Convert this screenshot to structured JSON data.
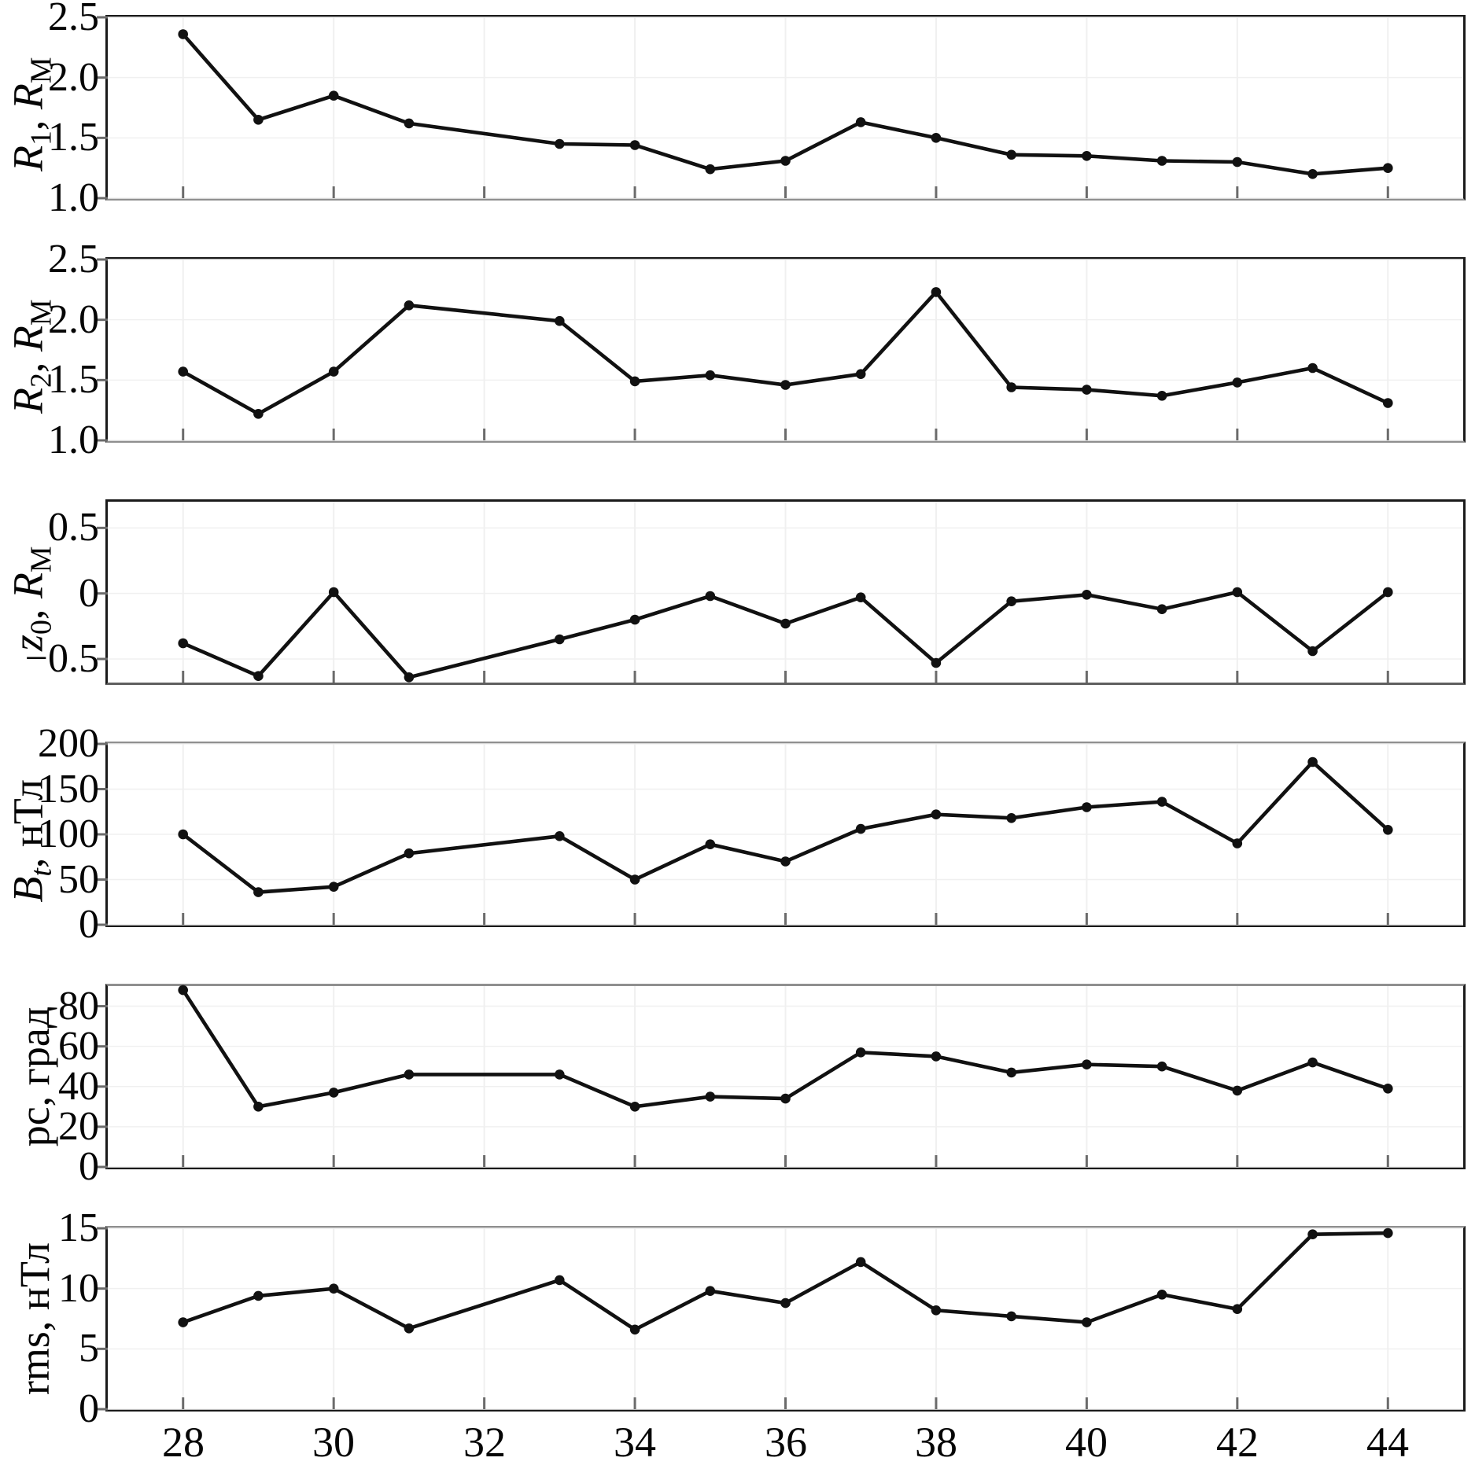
{
  "chart_data": {
    "type": "line",
    "x": [
      28,
      29,
      30,
      31,
      33,
      34,
      35,
      36,
      37,
      38,
      39,
      40,
      41,
      42,
      43,
      44
    ],
    "xlim": [
      27,
      45
    ],
    "x_ticks": [
      28,
      30,
      32,
      34,
      36,
      38,
      40,
      42,
      44
    ],
    "x_tick_labels": [
      "28",
      "30",
      "32",
      "34",
      "36",
      "38",
      "40",
      "42",
      "44"
    ],
    "legend": "none",
    "grid": "off",
    "marker": "filled-circle",
    "panels": [
      {
        "id": "R1",
        "ylabel": "R1, RM",
        "ylabel_parts": [
          {
            "t": "R",
            "i": 1
          },
          {
            "t": "1",
            "s": 1
          },
          {
            "t": ", "
          },
          {
            "t": "R",
            "i": 1
          },
          {
            "t": "M",
            "s": 1
          }
        ],
        "ylim": [
          1.0,
          2.5
        ],
        "yticks": [
          {
            "v": 2.5,
            "label": "2.5"
          },
          {
            "v": 2.0,
            "label": "2.0"
          },
          {
            "v": 1.5,
            "label": "1.5"
          },
          {
            "v": 1.0,
            "label": "1.0"
          }
        ],
        "values": [
          2.36,
          1.65,
          1.85,
          1.62,
          1.45,
          1.44,
          1.24,
          1.31,
          1.63,
          1.5,
          1.36,
          1.35,
          1.31,
          1.3,
          1.2,
          1.25
        ],
        "frame": {
          "top": "dark",
          "bottom": "muted"
        }
      },
      {
        "id": "R2",
        "ylabel": "R2, RM",
        "ylabel_parts": [
          {
            "t": "R",
            "i": 1
          },
          {
            "t": "2",
            "s": 1
          },
          {
            "t": ", "
          },
          {
            "t": "R",
            "i": 1
          },
          {
            "t": "M",
            "s": 1
          }
        ],
        "ylim": [
          1.0,
          2.5
        ],
        "yticks": [
          {
            "v": 2.5,
            "label": "2.5"
          },
          {
            "v": 2.0,
            "label": "2.0"
          },
          {
            "v": 1.5,
            "label": "1.5"
          },
          {
            "v": 1.0,
            "label": "1.0"
          }
        ],
        "values": [
          1.57,
          1.22,
          1.57,
          2.12,
          1.99,
          1.49,
          1.54,
          1.46,
          1.55,
          2.23,
          1.44,
          1.42,
          1.37,
          1.48,
          1.6,
          1.31
        ],
        "frame": {
          "top": "dark",
          "bottom": "muted"
        }
      },
      {
        "id": "z0",
        "ylabel": "z0, RM",
        "ylabel_parts": [
          {
            "t": "z",
            "i": 1
          },
          {
            "t": "0",
            "s": 1
          },
          {
            "t": ", "
          },
          {
            "t": "R",
            "i": 1
          },
          {
            "t": "M",
            "s": 1
          }
        ],
        "ylim": [
          -0.68,
          0.7
        ],
        "yticks": [
          {
            "v": 0.5,
            "label": "0.5"
          },
          {
            "v": 0,
            "label": "0"
          },
          {
            "v": -0.5,
            "label": "−0.5"
          }
        ],
        "values": [
          -0.38,
          -0.63,
          0.01,
          -0.64,
          -0.35,
          -0.2,
          -0.02,
          -0.23,
          -0.03,
          -0.53,
          -0.06,
          -0.01,
          -0.12,
          0.01,
          -0.44,
          0.01
        ],
        "frame": {
          "top": "dark",
          "bottom": "mid"
        }
      },
      {
        "id": "Bt",
        "ylabel": "Bt, нТл",
        "ylabel_parts": [
          {
            "t": "B",
            "i": 1
          },
          {
            "t": "t",
            "si": 1
          },
          {
            "t": ", нТл"
          }
        ],
        "ylim": [
          0,
          200
        ],
        "yticks": [
          {
            "v": 200,
            "label": "200"
          },
          {
            "v": 150,
            "label": "150"
          },
          {
            "v": 100,
            "label": "100"
          },
          {
            "v": 50,
            "label": "50"
          },
          {
            "v": 0,
            "label": "0"
          }
        ],
        "values": [
          100,
          36,
          42,
          79,
          98,
          50,
          89,
          70,
          106,
          122,
          118,
          130,
          136,
          90,
          180,
          105
        ],
        "frame": {
          "top": "muted",
          "bottom": "dark"
        }
      },
      {
        "id": "pc",
        "ylabel": "pc, град",
        "ylabel_parts": [
          {
            "t": "pc, град"
          }
        ],
        "ylim": [
          0,
          90
        ],
        "yticks": [
          {
            "v": 80,
            "label": "80"
          },
          {
            "v": 60,
            "label": "60"
          },
          {
            "v": 40,
            "label": "40"
          },
          {
            "v": 20,
            "label": "20"
          },
          {
            "v": 0,
            "label": "0"
          }
        ],
        "values": [
          88,
          30,
          37,
          46,
          46,
          30,
          35,
          34,
          57,
          55,
          47,
          51,
          50,
          38,
          52,
          39
        ],
        "frame": {
          "top": "muted",
          "bottom": "dark"
        }
      },
      {
        "id": "rms",
        "ylabel": "rms, нТл",
        "ylabel_parts": [
          {
            "t": "rms, нТл"
          }
        ],
        "ylim": [
          0,
          15
        ],
        "yticks": [
          {
            "v": 15,
            "label": "15"
          },
          {
            "v": 10,
            "label": "10"
          },
          {
            "v": 5,
            "label": "5"
          },
          {
            "v": 0,
            "label": "0"
          }
        ],
        "values": [
          7.2,
          9.4,
          10.0,
          6.7,
          10.7,
          6.6,
          9.8,
          8.8,
          12.2,
          8.2,
          7.7,
          7.2,
          9.5,
          8.3,
          14.5,
          14.6
        ],
        "frame": {
          "top": "muted",
          "bottom": "dark"
        }
      }
    ]
  },
  "colors": {
    "line": "#111111",
    "marker": "#111111",
    "frame_dark": "#1a1a1a",
    "frame_muted": "#8f8f8f",
    "frame_mid": "#5f5f5f",
    "tick": "#6b6b6b",
    "grid": "#f0f0f0",
    "text": "#050505",
    "background": "#ffffff"
  }
}
